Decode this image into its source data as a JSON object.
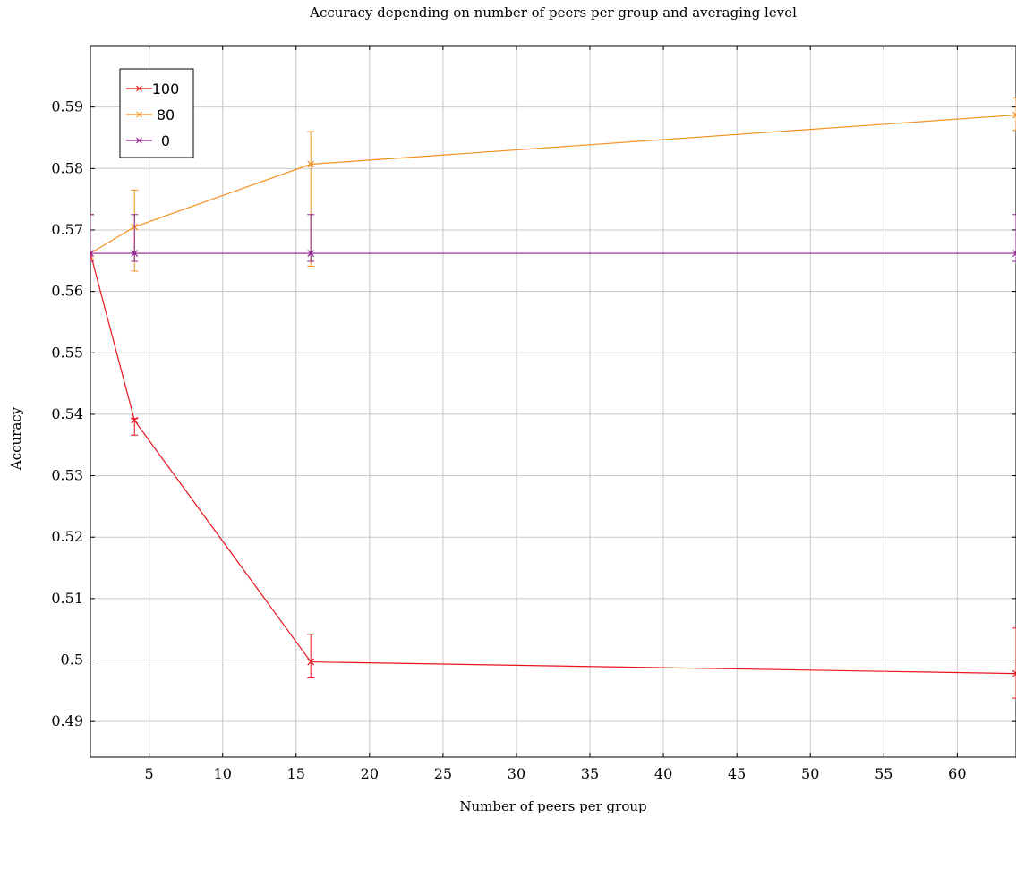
{
  "chart_data": {
    "type": "line",
    "title": "Accuracy depending on number of peers per group and averaging level",
    "xlabel": "Number of peers per group",
    "ylabel": "Accuracy",
    "xlim": [
      1,
      64
    ],
    "ylim": [
      0.4842,
      0.6
    ],
    "x_ticks": [
      5,
      10,
      15,
      20,
      25,
      30,
      35,
      40,
      45,
      50,
      55,
      60
    ],
    "x_tick_labels": [
      "5",
      "10",
      "15",
      "20",
      "25",
      "30",
      "35",
      "40",
      "45",
      "50",
      "55",
      "60"
    ],
    "y_ticks": [
      0.49,
      0.5,
      0.51,
      0.52,
      0.53,
      0.54,
      0.55,
      0.56,
      0.57,
      0.58,
      0.59
    ],
    "y_tick_labels": [
      "0.49",
      "0.5",
      "0.51",
      "0.52",
      "0.53",
      "0.54",
      "0.55",
      "0.56",
      "0.57",
      "0.58",
      "0.59"
    ],
    "grid": true,
    "legend_position": "top-left",
    "series": [
      {
        "name": "100",
        "color": "#e8141c",
        "x": [
          1,
          4,
          16,
          64
        ],
        "y": [
          0.5662,
          0.539,
          0.4997,
          0.4978
        ],
        "err_low": [
          0.5652,
          0.5366,
          0.4971,
          0.4938
        ],
        "err_high": [
          0.5725,
          0.5393,
          0.5042,
          0.5052
        ]
      },
      {
        "name": "80",
        "color": "#f4901e",
        "x": [
          1,
          4,
          16,
          64
        ],
        "y": [
          0.5662,
          0.5705,
          0.5807,
          0.5887
        ],
        "err_low": [
          0.5652,
          0.5633,
          0.5641,
          0.5862
        ],
        "err_high": [
          0.5725,
          0.5765,
          0.586,
          0.5915
        ]
      },
      {
        "name": "0",
        "color": "#8e1f8e",
        "x": [
          1,
          4,
          16,
          64
        ],
        "y": [
          0.5662,
          0.5662,
          0.5662,
          0.5662
        ],
        "err_low": [
          0.5649,
          0.5649,
          0.5649,
          0.5649
        ],
        "err_high": [
          0.5725,
          0.5725,
          0.5725,
          0.5725
        ]
      }
    ]
  }
}
